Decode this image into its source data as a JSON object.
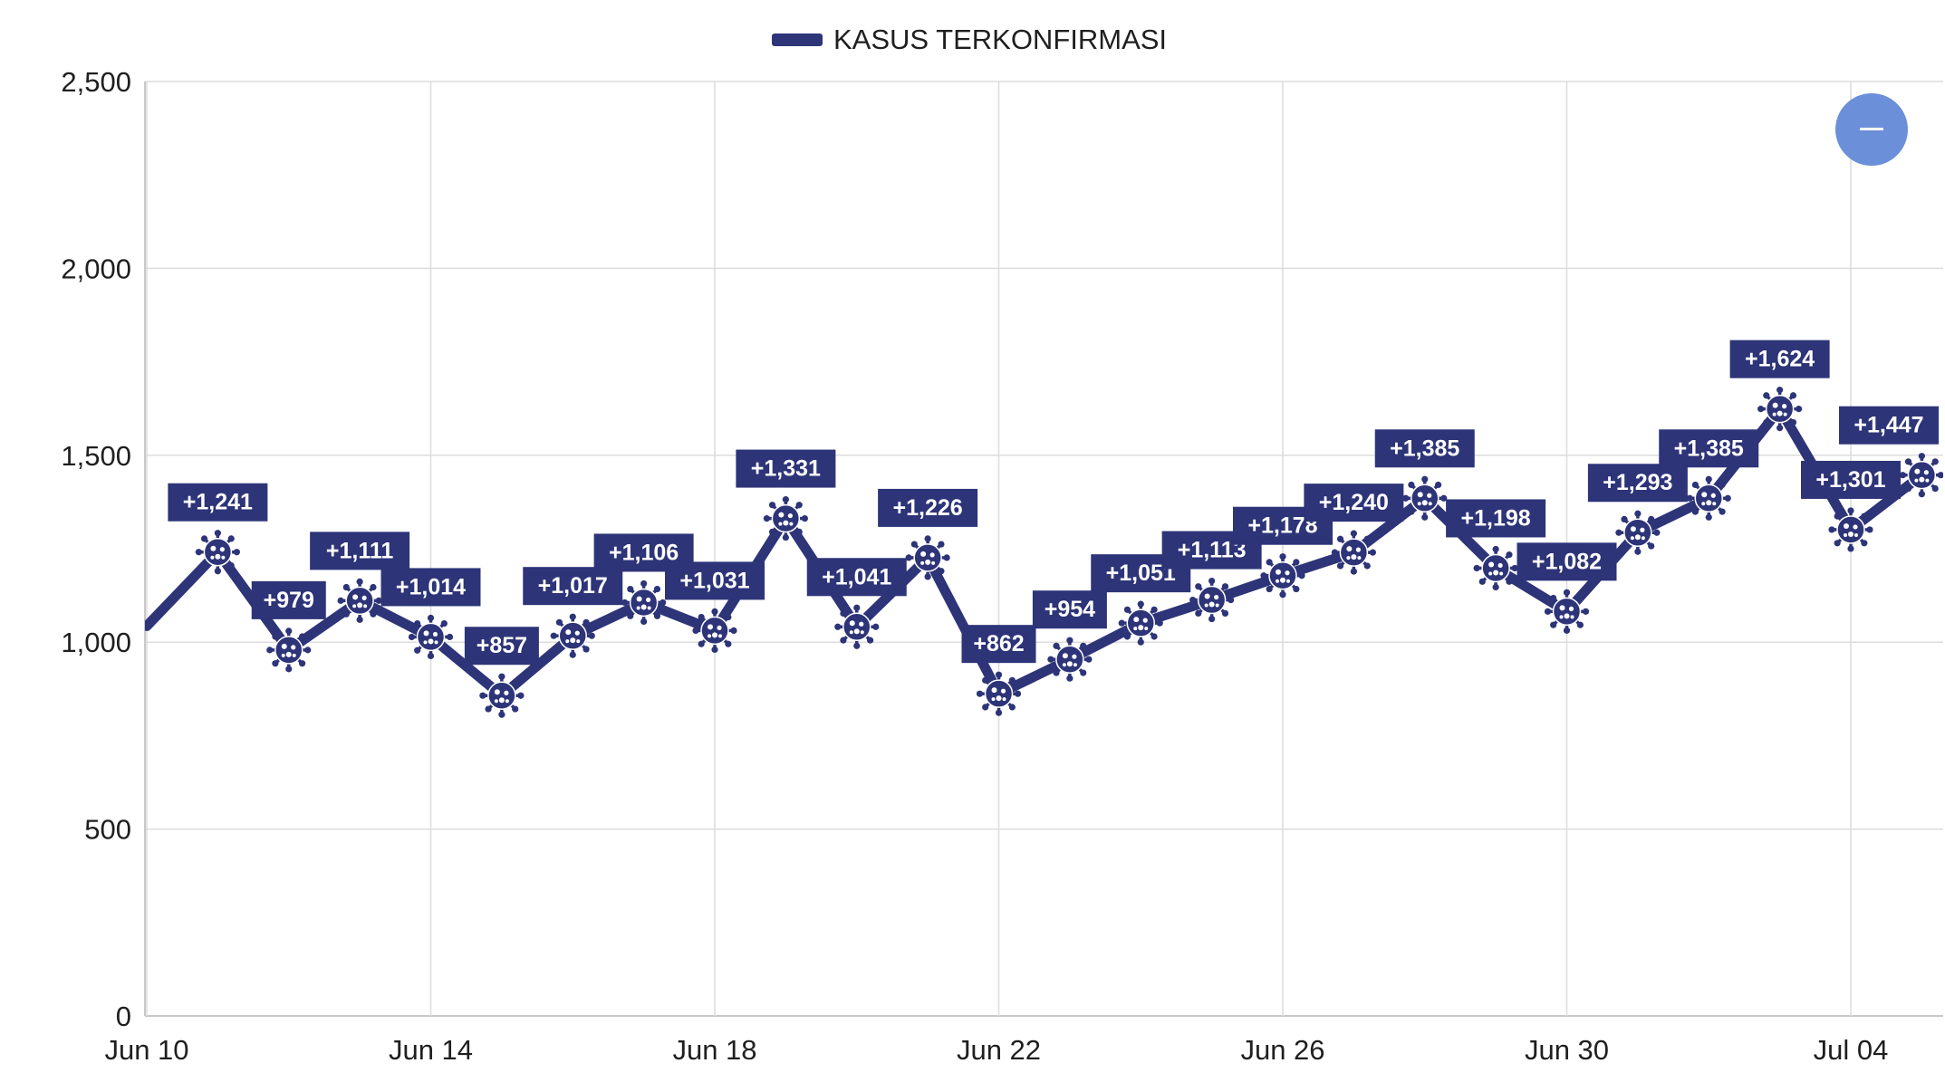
{
  "chart_data": {
    "type": "line",
    "title": "",
    "xlabel": "",
    "ylabel": "",
    "ylim": [
      0,
      2500
    ],
    "y_ticks": [
      0,
      500,
      1000,
      1500,
      2000,
      2500
    ],
    "y_tick_labels": [
      "0",
      "500",
      "1,000",
      "1,500",
      "2,000",
      "2,500"
    ],
    "x_ticks": [
      "2020-06-10",
      "2020-06-14",
      "2020-06-18",
      "2020-06-22",
      "2020-06-26",
      "2020-06-30",
      "2020-07-04"
    ],
    "x_tick_labels": [
      "Jun 10",
      "Jun 14",
      "Jun 18",
      "Jun 22",
      "Jun 26",
      "Jun 30",
      "Jul 04"
    ],
    "grid": true,
    "legend_position": "top-center",
    "line_color": "#2d3478",
    "series": [
      {
        "name": "KASUS TERKONFIRMASI",
        "x": [
          "2020-06-10",
          "2020-06-11",
          "2020-06-12",
          "2020-06-13",
          "2020-06-14",
          "2020-06-15",
          "2020-06-16",
          "2020-06-17",
          "2020-06-18",
          "2020-06-19",
          "2020-06-20",
          "2020-06-21",
          "2020-06-22",
          "2020-06-23",
          "2020-06-24",
          "2020-06-25",
          "2020-06-26",
          "2020-06-27",
          "2020-06-28",
          "2020-06-29",
          "2020-06-30",
          "2020-07-01",
          "2020-07-02",
          "2020-07-03",
          "2020-07-04",
          "2020-07-05"
        ],
        "values": [
          1043,
          1241,
          979,
          1111,
          1014,
          857,
          1017,
          1106,
          1031,
          1331,
          1041,
          1226,
          862,
          954,
          1051,
          1113,
          1178,
          1240,
          1385,
          1198,
          1082,
          1293,
          1385,
          1624,
          1301,
          1447
        ],
        "data_labels": [
          "",
          "+1,241",
          "+979",
          "+1,111",
          "+1,014",
          "+857",
          "+1,017",
          "+1,106",
          "+1,031",
          "+1,331",
          "+1,041",
          "+1,226",
          "+862",
          "+954",
          "+1,051",
          "+1,113",
          "+1,178",
          "+1,240",
          "+1,385",
          "+1,198",
          "+1,082",
          "+1,293",
          "+1,385",
          "+1,624",
          "+1,301",
          "+1,447"
        ]
      }
    ],
    "marker_icon": "virus-icon",
    "zoom_button": {
      "icon": "minus-icon",
      "color": "#6b8fd8"
    }
  }
}
